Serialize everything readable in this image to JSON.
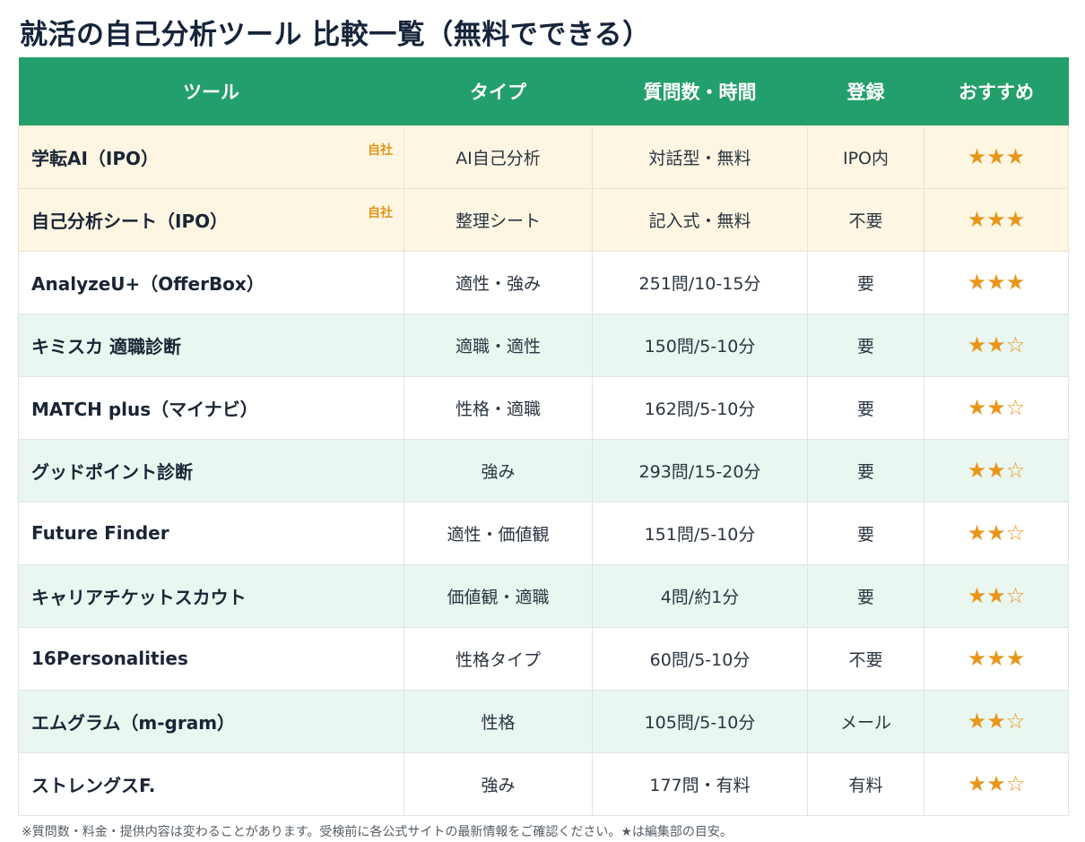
{
  "title": "就活の自己分析ツール 比較一覧（無料でできる）",
  "table": {
    "headers": [
      "ツール",
      "タイプ",
      "質問数・時間",
      "登録",
      "おすすめ"
    ],
    "rows": [
      {
        "tool": "学転AI（IPO）",
        "badge": "自社",
        "type": "AI自己分析",
        "questions": "対話型・無料",
        "registration": "IPO内",
        "rating": "★★★",
        "style": "own"
      },
      {
        "tool": "自己分析シート（IPO）",
        "badge": "自社",
        "type": "整理シート",
        "questions": "記入式・無料",
        "registration": "不要",
        "rating": "★★★",
        "style": "own"
      },
      {
        "tool": "AnalyzeU+（OfferBox）",
        "type": "適性・強み",
        "questions": "251問/10-15分",
        "registration": "要",
        "rating": "★★★",
        "style": "white"
      },
      {
        "tool": "キミスカ 適職診断",
        "type": "適職・適性",
        "questions": "150問/5-10分",
        "registration": "要",
        "rating": "★★☆",
        "style": "tint"
      },
      {
        "tool": "MATCH plus（マイナビ）",
        "type": "性格・適職",
        "questions": "162問/5-10分",
        "registration": "要",
        "rating": "★★☆",
        "style": "white"
      },
      {
        "tool": "グッドポイント診断",
        "type": "強み",
        "questions": "293問/15-20分",
        "registration": "要",
        "rating": "★★☆",
        "style": "tint"
      },
      {
        "tool": "Future Finder",
        "type": "適性・価値観",
        "questions": "151問/5-10分",
        "registration": "要",
        "rating": "★★☆",
        "style": "white"
      },
      {
        "tool": "キャリアチケットスカウト",
        "type": "価値観・適職",
        "questions": "4問/約1分",
        "registration": "要",
        "rating": "★★☆",
        "style": "tint"
      },
      {
        "tool": "16Personalities",
        "type": "性格タイプ",
        "questions": "60問/5-10分",
        "registration": "不要",
        "rating": "★★★",
        "style": "white"
      },
      {
        "tool": "エムグラム（m-gram）",
        "type": "性格",
        "questions": "105問/5-10分",
        "registration": "メール",
        "rating": "★★☆",
        "style": "tint"
      },
      {
        "tool": "ストレングスF.",
        "type": "強み",
        "questions": "177問・有料",
        "registration": "有料",
        "rating": "★★☆",
        "style": "white"
      }
    ]
  },
  "footnote": "※質問数・料金・提供内容は変わることがあります。受検前に各公式サイトの最新情報をご確認ください。★は編集部の目安。",
  "colors": {
    "header_bg": "#239f6b",
    "own_row_bg": "#fdf6e3",
    "tint_row_bg": "#eaf6f0",
    "star": "#e8961a",
    "badge": "#e0961c"
  }
}
